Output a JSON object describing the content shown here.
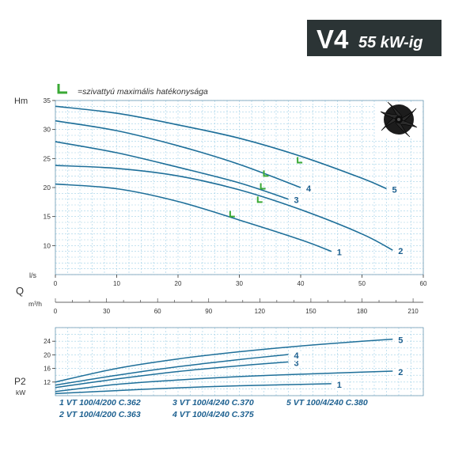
{
  "header": {
    "model": "V4",
    "power": "55 kW-ig",
    "bg_color": "#2b3435",
    "text_color": "#ffffff"
  },
  "legend_note": {
    "symbol": "L",
    "text": "=szivattyú maximális hatékonysága",
    "symbol_color": "#3aa935"
  },
  "impeller_icon": "impeller-icon",
  "colors": {
    "curve": "#1e6f99",
    "grid": "#9fd0e6",
    "label": "#1b5f8f",
    "axis_text": "#333333",
    "efficiency_mark": "#3aa935"
  },
  "models": [
    {
      "id": "1",
      "name": "VT 100/4/200 C.362"
    },
    {
      "id": "2",
      "name": "VT 100/4/200 C.363"
    },
    {
      "id": "3",
      "name": "VT 100/4/240 C.370"
    },
    {
      "id": "4",
      "name": "VT 100/4/240 C.375"
    },
    {
      "id": "5",
      "name": "VT 100/4/240 C.380"
    }
  ],
  "chart_data": [
    {
      "type": "line",
      "title": "",
      "ylabel": "Hm",
      "xlabel": "l/s",
      "xlim": [
        0,
        60
      ],
      "ylim": [
        5,
        35
      ],
      "x_ticks": [
        0,
        10,
        20,
        30,
        40,
        50,
        60
      ],
      "y_ticks": [
        10,
        15,
        20,
        25,
        30,
        35
      ],
      "series": [
        {
          "name": "1",
          "x": [
            0,
            10,
            20,
            30,
            40,
            45
          ],
          "y": [
            20.6,
            19.8,
            17.6,
            14.4,
            11.0,
            9.0
          ]
        },
        {
          "name": "2",
          "x": [
            0,
            10,
            20,
            30,
            40,
            50,
            55
          ],
          "y": [
            23.8,
            23.3,
            22.0,
            19.6,
            16.2,
            12.0,
            9.2
          ]
        },
        {
          "name": "3",
          "x": [
            0,
            10,
            20,
            30,
            38
          ],
          "y": [
            27.9,
            26.0,
            23.5,
            20.8,
            18.0
          ]
        },
        {
          "name": "4",
          "x": [
            0,
            10,
            20,
            30,
            40
          ],
          "y": [
            31.5,
            29.8,
            27.2,
            24.0,
            20.0
          ]
        },
        {
          "name": "5",
          "x": [
            0,
            10,
            20,
            30,
            40,
            50,
            54
          ],
          "y": [
            34.0,
            32.8,
            30.8,
            28.5,
            25.4,
            21.6,
            19.8
          ]
        }
      ],
      "efficiency_points": [
        {
          "x": 28.5,
          "y": 15.0
        },
        {
          "x": 33,
          "y": 17.5
        },
        {
          "x": 33.5,
          "y": 19.8
        },
        {
          "x": 34,
          "y": 22.0
        },
        {
          "x": 39.5,
          "y": 24.3
        }
      ]
    },
    {
      "type": "axis",
      "xlabel": "Q",
      "unit": "m³/h",
      "xlim": [
        0,
        216
      ],
      "x_ticks": [
        0,
        30,
        60,
        90,
        120,
        150,
        180,
        210
      ]
    },
    {
      "type": "line",
      "ylabel": "P2",
      "unit": "kW",
      "xlim": [
        0,
        60
      ],
      "ylim": [
        8,
        28
      ],
      "y_ticks": [
        12,
        16,
        20,
        24
      ],
      "series": [
        {
          "name": "1",
          "x": [
            0,
            10,
            20,
            30,
            40,
            45
          ],
          "y": [
            8.6,
            9.5,
            10.3,
            10.9,
            11.3,
            11.5
          ]
        },
        {
          "name": "2",
          "x": [
            0,
            10,
            20,
            30,
            40,
            50,
            55
          ],
          "y": [
            9.2,
            11.3,
            12.6,
            13.6,
            14.3,
            14.9,
            15.2
          ]
        },
        {
          "name": "3",
          "x": [
            0,
            10,
            20,
            30,
            38
          ],
          "y": [
            10.4,
            12.9,
            15.1,
            16.8,
            17.9
          ]
        },
        {
          "name": "4",
          "x": [
            0,
            10,
            20,
            30,
            38
          ],
          "y": [
            11.1,
            14.0,
            16.5,
            18.6,
            20.1
          ]
        },
        {
          "name": "5",
          "x": [
            0,
            10,
            20,
            30,
            40,
            50,
            55
          ],
          "y": [
            12.0,
            16.0,
            18.8,
            20.9,
            22.6,
            24.0,
            24.6
          ]
        }
      ]
    }
  ]
}
